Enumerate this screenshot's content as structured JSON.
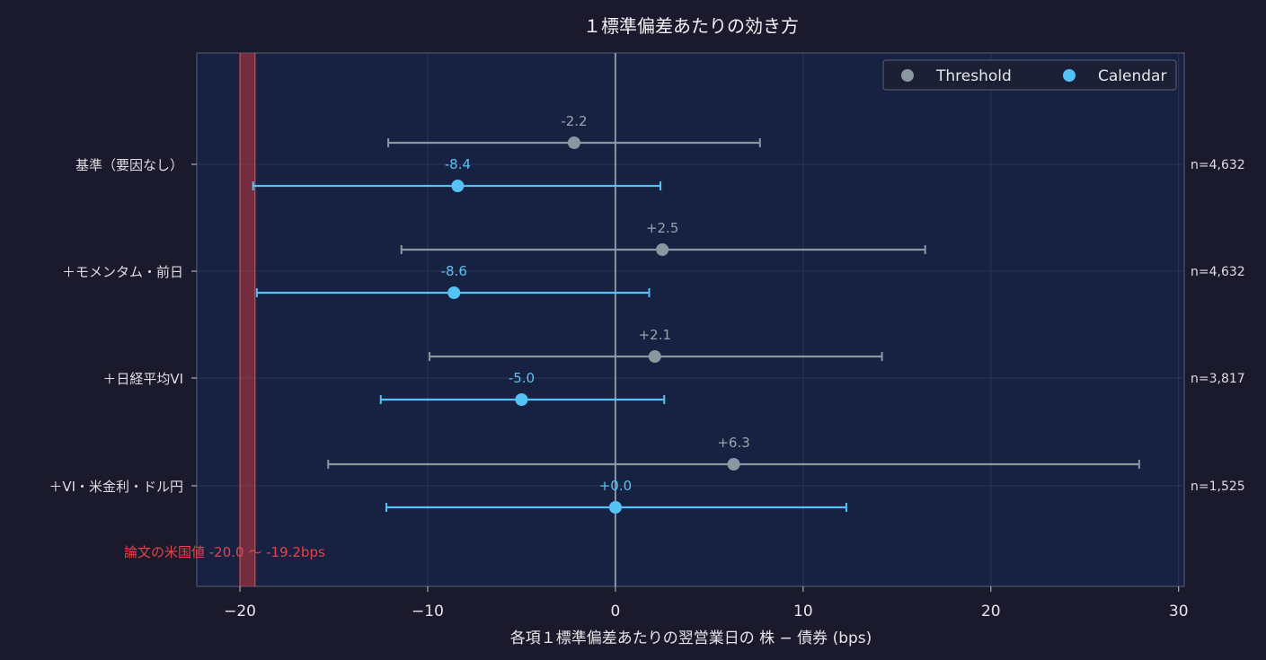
{
  "chart_data": {
    "type": "scatter",
    "title": "１標準偏差あたりの効き方",
    "xlabel": "各項１標準偏差あたりの翌営業日の 株 − 債券 (bps)",
    "xlim": [
      -22.3,
      30.3
    ],
    "xticks": [
      -20,
      -10,
      0,
      10,
      20,
      30
    ],
    "xtick_labels": [
      "−20",
      "−10",
      "0",
      "10",
      "20",
      "30"
    ],
    "grid": true,
    "legend_position": "top-right",
    "categories": [
      "基準（要因なし）",
      "＋モメンタム・前日",
      "＋日経平均VI",
      "＋VI・米金利・ドル円"
    ],
    "n_labels": [
      "n=4,632",
      "n=4,632",
      "n=3,817",
      "n=1,525"
    ],
    "series": [
      {
        "name": "Threshold",
        "color": "#8a96a0",
        "label_color": "#9aa3ad",
        "values": [
          -2.2,
          2.5,
          2.1,
          6.3
        ],
        "ci_low": [
          -12.1,
          -11.4,
          -9.9,
          -15.3
        ],
        "ci_high": [
          7.7,
          16.5,
          14.2,
          27.9
        ],
        "value_labels": [
          "-2.2",
          "+2.5",
          "+2.1",
          "+6.3"
        ]
      },
      {
        "name": "Calendar",
        "color": "#55c2f5",
        "label_color": "#5cc3f2",
        "values": [
          -8.4,
          -8.6,
          -5.0,
          0.0
        ],
        "ci_low": [
          -19.3,
          -19.1,
          -12.5,
          -12.2
        ],
        "ci_high": [
          2.4,
          1.8,
          2.6,
          12.3
        ],
        "value_labels": [
          "-8.4",
          "-8.6",
          "-5.0",
          "+0.0"
        ]
      }
    ],
    "reference_band": {
      "low": -20.0,
      "high": -19.2,
      "color": "#c0393e",
      "label": "論文の米国値 -20.0 〜 -19.2bps"
    }
  }
}
